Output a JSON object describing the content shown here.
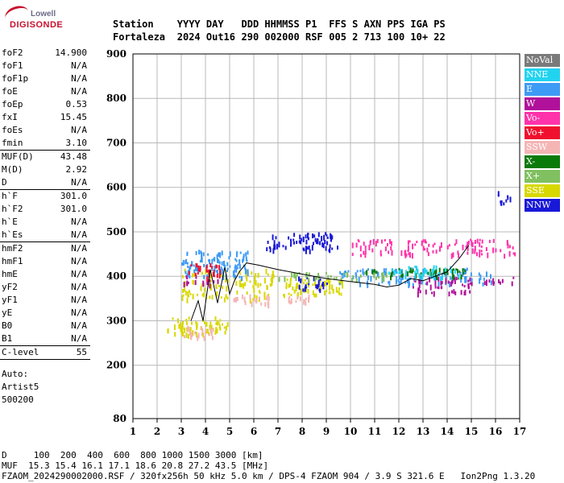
{
  "logo": {
    "line1": "Lowell",
    "line2": "DIGISONDE"
  },
  "header": {
    "row1": [
      "Station",
      "YYYY DAY",
      "DDD HHMMSS P1",
      "FFS S AXN PPS IGA PS"
    ],
    "row2": [
      "Fortaleza",
      "2024 Out16",
      "290 002000 RSF",
      "005 2 713 100 10+ 22"
    ]
  },
  "params": {
    "group1": [
      {
        "label": "foF2",
        "value": "14.900"
      },
      {
        "label": "foF1",
        "value": "N/A"
      },
      {
        "label": "foF1p",
        "value": "N/A"
      },
      {
        "label": "foE",
        "value": "N/A"
      },
      {
        "label": "foEp",
        "value": "0.53"
      },
      {
        "label": "fxI",
        "value": "15.45"
      },
      {
        "label": "foEs",
        "value": "N/A"
      },
      {
        "label": "fmin",
        "value": "3.10"
      }
    ],
    "group2": [
      {
        "label": "MUF(D)",
        "value": "43.48"
      },
      {
        "label": "M(D)",
        "value": "2.92"
      },
      {
        "label": "D",
        "value": "N/A"
      }
    ],
    "group3": [
      {
        "label": "h`F",
        "value": "301.0"
      },
      {
        "label": "h`F2",
        "value": "301.0"
      },
      {
        "label": "h`E",
        "value": "N/A"
      },
      {
        "label": "h`Es",
        "value": "N/A"
      }
    ],
    "group4": [
      {
        "label": "hmF2",
        "value": "N/A"
      },
      {
        "label": "hmF1",
        "value": "N/A"
      },
      {
        "label": "hmE",
        "value": "N/A"
      },
      {
        "label": "yF2",
        "value": "N/A"
      },
      {
        "label": "yF1",
        "value": "N/A"
      },
      {
        "label": "yE",
        "value": "N/A"
      },
      {
        "label": "B0",
        "value": "N/A"
      },
      {
        "label": "B1",
        "value": "N/A"
      }
    ],
    "group5": [
      {
        "label": "C-level",
        "value": "55"
      }
    ],
    "auto": [
      "Auto:",
      "Artist5",
      "500200"
    ]
  },
  "legend": [
    {
      "label": "NoVal",
      "color": "#7a7a7a"
    },
    {
      "label": "NNE",
      "color": "#22d3f0"
    },
    {
      "label": "E",
      "color": "#3d9bf5"
    },
    {
      "label": "W",
      "color": "#b0109a"
    },
    {
      "label": "Vo-",
      "color": "#ff33aa"
    },
    {
      "label": "Vo+",
      "color": "#f0102e"
    },
    {
      "label": "SSW",
      "color": "#f5b5b5"
    },
    {
      "label": "X-",
      "color": "#0a7a0a"
    },
    {
      "label": "X+",
      "color": "#80c060"
    },
    {
      "label": "SSE",
      "color": "#d8d800"
    },
    {
      "label": "NNW",
      "color": "#1818d8"
    }
  ],
  "footer": {
    "line1": "D     100  200  400  600  800 1000 1500 3000 [km]",
    "line2": "MUF  15.3 15.4 16.1 17.1 18.6 20.8 27.2 43.5 [MHz]",
    "line3": "FZAOM_2024290002000.RSF / 320fx256h 50 kHz 5.0 km / DPS-4 FZAOM 904 / 3.9 S 321.6 E   Ion2Png 1.3.20"
  },
  "chart_data": {
    "type": "scatter",
    "xlim": [
      1,
      17
    ],
    "ylim": [
      80,
      900
    ],
    "x_ticks": [
      1,
      2,
      3,
      4,
      5,
      6,
      7,
      8,
      9,
      10,
      11,
      12,
      13,
      14,
      15,
      16,
      17
    ],
    "y_ticks": [
      80,
      200,
      300,
      400,
      500,
      600,
      700,
      800,
      900
    ],
    "grid": true,
    "trace_line": {
      "x": [
        3.4,
        3.7,
        3.9,
        4.2,
        4.5,
        4.8,
        5.0,
        5.2,
        5.4,
        5.7,
        6.2,
        7.0,
        8.0,
        9.0,
        10.0,
        11.0,
        11.5,
        12.0,
        12.5,
        13.0,
        13.5,
        14.0,
        14.5,
        14.9
      ],
      "y": [
        300,
        345,
        300,
        415,
        340,
        420,
        360,
        390,
        410,
        430,
        425,
        415,
        405,
        395,
        388,
        382,
        376,
        380,
        395,
        390,
        400,
        410,
        440,
        470
      ]
    },
    "echo_clusters": [
      {
        "series": "SSE",
        "x": [
          2.4,
          4.9
        ],
        "y": [
          270,
          310
        ]
      },
      {
        "series": "SSW",
        "x": [
          2.8,
          4.3
        ],
        "y": [
          265,
          290
        ]
      },
      {
        "series": "SSE",
        "x": [
          3.0,
          6.8
        ],
        "y": [
          350,
          420
        ]
      },
      {
        "series": "SSW",
        "x": [
          5.0,
          6.7
        ],
        "y": [
          340,
          360
        ]
      },
      {
        "series": "SSE",
        "x": [
          7.2,
          9.8
        ],
        "y": [
          360,
          400
        ]
      },
      {
        "series": "SSW",
        "x": [
          7.4,
          8.5
        ],
        "y": [
          340,
          360
        ]
      },
      {
        "series": "E",
        "x": [
          3.0,
          5.8
        ],
        "y": [
          400,
          460
        ]
      },
      {
        "series": "E",
        "x": [
          9.5,
          15.8
        ],
        "y": [
          385,
          420
        ]
      },
      {
        "series": "W",
        "x": [
          3.0,
          4.5
        ],
        "y": [
          385,
          405
        ]
      },
      {
        "series": "W",
        "x": [
          12.5,
          15.0
        ],
        "y": [
          365,
          400
        ]
      },
      {
        "series": "W",
        "x": [
          15.5,
          16.8
        ],
        "y": [
          385,
          400
        ]
      },
      {
        "series": "NNW",
        "x": [
          6.5,
          9.5
        ],
        "y": [
          460,
          500
        ]
      },
      {
        "series": "NNW",
        "x": [
          7.8,
          9.0
        ],
        "y": [
          370,
          400
        ]
      },
      {
        "series": "Vo-",
        "x": [
          10.0,
          16.8
        ],
        "y": [
          450,
          485
        ]
      },
      {
        "series": "Vo+",
        "x": [
          3.2,
          4.6
        ],
        "y": [
          400,
          430
        ]
      },
      {
        "series": "X-",
        "x": [
          10.5,
          14.8
        ],
        "y": [
          400,
          420
        ]
      },
      {
        "series": "X+",
        "x": [
          7.0,
          11.5
        ],
        "y": [
          395,
          410
        ]
      },
      {
        "series": "NNE",
        "x": [
          11.5,
          14.5
        ],
        "y": [
          400,
          425
        ]
      },
      {
        "series": "NNW",
        "x": [
          16.0,
          16.6
        ],
        "y": [
          565,
          595
        ]
      }
    ]
  }
}
